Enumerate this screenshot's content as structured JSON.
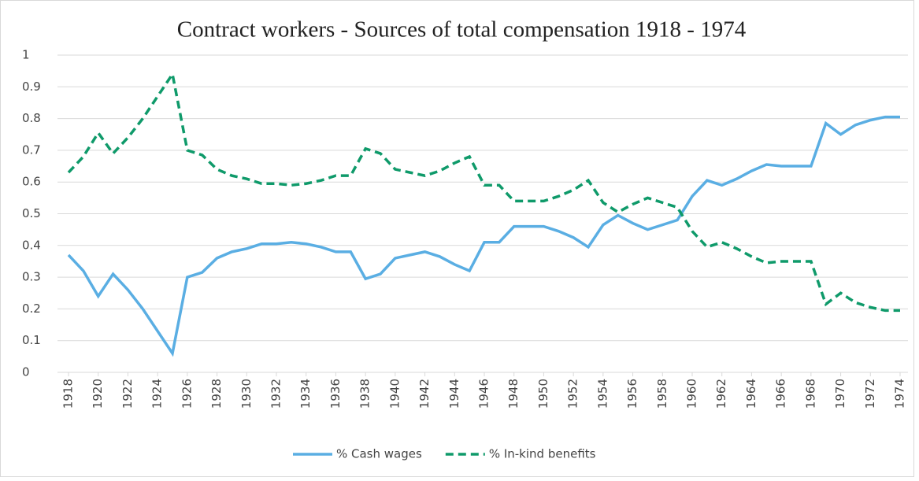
{
  "chart_data": {
    "type": "line",
    "title": "Contract workers - Sources of total compensation 1918 - 1974",
    "x": [
      1918,
      1919,
      1920,
      1921,
      1922,
      1923,
      1924,
      1925,
      1926,
      1927,
      1928,
      1929,
      1930,
      1931,
      1932,
      1933,
      1934,
      1935,
      1936,
      1937,
      1938,
      1939,
      1940,
      1941,
      1942,
      1943,
      1944,
      1945,
      1946,
      1947,
      1948,
      1949,
      1950,
      1951,
      1952,
      1953,
      1954,
      1955,
      1956,
      1957,
      1958,
      1959,
      1960,
      1961,
      1962,
      1963,
      1964,
      1965,
      1966,
      1967,
      1968,
      1969,
      1970,
      1971,
      1972,
      1973,
      1974
    ],
    "xlim": [
      1918,
      1974
    ],
    "xticks": [
      1918,
      1920,
      1922,
      1924,
      1926,
      1928,
      1930,
      1932,
      1934,
      1936,
      1938,
      1940,
      1942,
      1944,
      1946,
      1948,
      1950,
      1952,
      1954,
      1956,
      1958,
      1960,
      1962,
      1964,
      1966,
      1968,
      1970,
      1972,
      1974
    ],
    "ylim": [
      0,
      1
    ],
    "yticks": [
      0,
      0.1,
      0.2,
      0.3,
      0.4,
      0.5,
      0.6,
      0.7,
      0.8,
      0.9,
      1
    ],
    "grid": true,
    "legend": "bottom",
    "series": [
      {
        "name": "% Cash wages",
        "color": "#5aaee3",
        "dash": false,
        "values": [
          0.37,
          0.32,
          0.24,
          0.31,
          0.26,
          0.2,
          0.13,
          0.06,
          0.3,
          0.315,
          0.36,
          0.38,
          0.39,
          0.405,
          0.405,
          0.41,
          0.405,
          0.395,
          0.38,
          0.38,
          0.295,
          0.31,
          0.36,
          0.37,
          0.38,
          0.365,
          0.34,
          0.32,
          0.41,
          0.41,
          0.46,
          0.46,
          0.46,
          0.445,
          0.425,
          0.395,
          0.465,
          0.495,
          0.47,
          0.45,
          0.465,
          0.48,
          0.555,
          0.605,
          0.59,
          0.61,
          0.635,
          0.655,
          0.65,
          0.65,
          0.65,
          0.785,
          0.75,
          0.78,
          0.795,
          0.805,
          0.805
        ]
      },
      {
        "name": "% In-kind benefits",
        "color": "#0f9a6a",
        "dash": true,
        "values": [
          0.63,
          0.68,
          0.755,
          0.69,
          0.74,
          0.8,
          0.87,
          0.94,
          0.7,
          0.685,
          0.64,
          0.62,
          0.61,
          0.595,
          0.595,
          0.59,
          0.595,
          0.605,
          0.62,
          0.62,
          0.705,
          0.69,
          0.64,
          0.63,
          0.62,
          0.635,
          0.66,
          0.68,
          0.59,
          0.59,
          0.54,
          0.54,
          0.54,
          0.555,
          0.575,
          0.605,
          0.535,
          0.505,
          0.53,
          0.55,
          0.535,
          0.52,
          0.445,
          0.395,
          0.41,
          0.39,
          0.365,
          0.345,
          0.35,
          0.35,
          0.35,
          0.215,
          0.25,
          0.22,
          0.205,
          0.195,
          0.195
        ]
      }
    ]
  }
}
